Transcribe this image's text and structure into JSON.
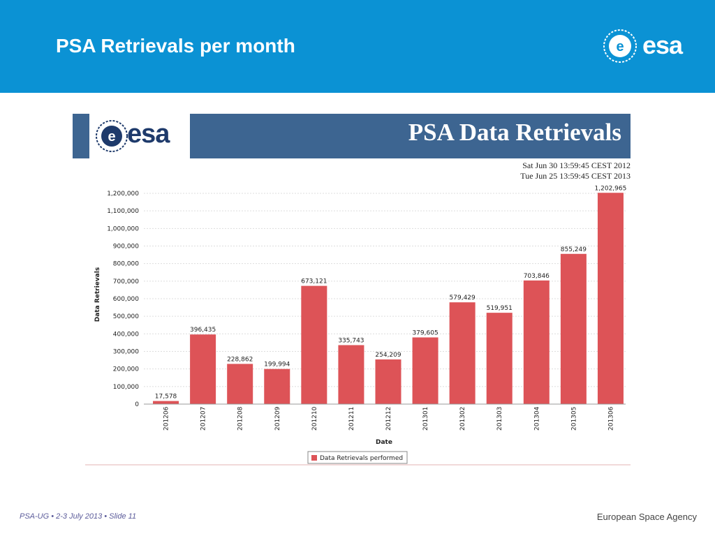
{
  "slide": {
    "title": "PSA Retrievals per month",
    "logo_text": "esa"
  },
  "banner": {
    "logo_text": "esa",
    "title": "PSA Data Retrievals",
    "date_from": "Sat Jun 30 13:59:45 CEST 2012",
    "date_to": "Tue Jun 25 13:59:45 CEST 2013"
  },
  "footer": {
    "left_text": "PSA-UG  •   2-3 July 2013 •    Slide 11",
    "right_text": "European Space Agency"
  },
  "colors": {
    "header_bg": "#0b92d4",
    "banner_bg": "#3d6591",
    "bar": "#dd5357"
  },
  "chart_data": {
    "type": "bar",
    "xlabel": "Date",
    "ylabel": "Data Retrievals",
    "ylim": [
      0,
      1200000
    ],
    "yticks": [
      0,
      100000,
      200000,
      300000,
      400000,
      500000,
      600000,
      700000,
      800000,
      900000,
      1000000,
      1100000,
      1200000
    ],
    "ytick_labels": [
      "0",
      "100,000",
      "200,000",
      "300,000",
      "400,000",
      "500,000",
      "600,000",
      "700,000",
      "800,000",
      "900,000",
      "1,000,000",
      "1,100,000",
      "1,200,000"
    ],
    "grid": true,
    "legend_position": "bottom",
    "categories": [
      "201206",
      "201207",
      "201208",
      "201209",
      "201210",
      "201211",
      "201212",
      "201301",
      "201302",
      "201303",
      "201304",
      "201305",
      "201306"
    ],
    "series": [
      {
        "name": "Data Retrievals performed",
        "values": [
          17578,
          396435,
          228862,
          199994,
          673121,
          335743,
          254209,
          379605,
          579429,
          519951,
          703846,
          855249,
          1202965
        ],
        "labels": [
          "17,578",
          "396,435",
          "228,862",
          "199,994",
          "673,121",
          "335,743",
          "254,209",
          "379,605",
          "579,429",
          "519,951",
          "703,846",
          "855,249",
          "1,202,965"
        ]
      }
    ]
  }
}
